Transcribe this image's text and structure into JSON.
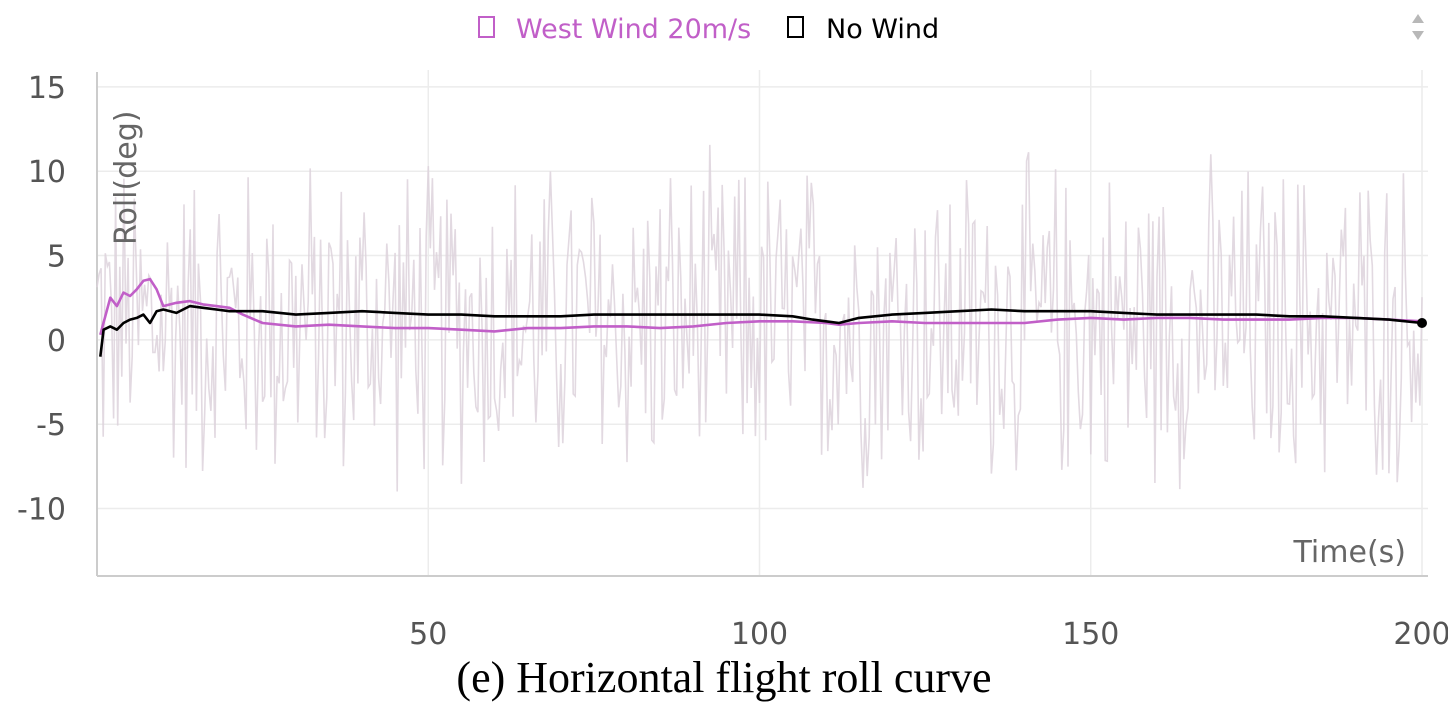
{
  "chart_data": {
    "type": "line",
    "caption": "(e) Horizontal flight roll curve",
    "xlabel": "Time(s)",
    "ylabel": "Roll(deg)",
    "xlim": [
      0,
      200
    ],
    "ylim": [
      -14,
      16
    ],
    "x_ticks": [
      50,
      100,
      150,
      200
    ],
    "x_tick_labels": [
      "50",
      "100",
      "150",
      "200"
    ],
    "y_ticks": [
      15,
      10,
      5,
      0,
      -5,
      -10
    ],
    "y_tick_labels": [
      "15",
      "10",
      "5",
      "0",
      "-5",
      "-10"
    ],
    "grid": true,
    "legend_position": "top-center",
    "colors": {
      "west_wind": "#c15fc8",
      "no_wind": "#000000",
      "raw_noise": "#ddd2dc",
      "grid": "#ececec",
      "axis": "#cccccc"
    },
    "series": [
      {
        "name": "West Wind 20m/s",
        "x": [
          0.5,
          2,
          3,
          4,
          5,
          6,
          7,
          8,
          9,
          10,
          12,
          14,
          16,
          18,
          20,
          22,
          25,
          30,
          35,
          40,
          45,
          50,
          55,
          60,
          65,
          70,
          75,
          80,
          85,
          90,
          95,
          100,
          105,
          110,
          112,
          115,
          120,
          125,
          130,
          135,
          140,
          145,
          150,
          155,
          160,
          165,
          170,
          175,
          180,
          185,
          190,
          195,
          200
        ],
        "y": [
          0.3,
          2.5,
          2.0,
          2.8,
          2.6,
          3.0,
          3.5,
          3.6,
          3.0,
          2.0,
          2.2,
          2.3,
          2.1,
          2.0,
          1.9,
          1.5,
          1.0,
          0.8,
          0.9,
          0.8,
          0.7,
          0.7,
          0.6,
          0.5,
          0.7,
          0.7,
          0.8,
          0.8,
          0.7,
          0.8,
          1.0,
          1.1,
          1.1,
          1.0,
          0.9,
          1.0,
          1.1,
          1.0,
          1.0,
          1.0,
          1.0,
          1.2,
          1.3,
          1.2,
          1.3,
          1.3,
          1.2,
          1.2,
          1.2,
          1.3,
          1.3,
          1.2,
          1.1
        ]
      },
      {
        "name": "No Wind",
        "x": [
          0.5,
          1,
          2,
          3,
          4,
          5,
          6,
          7,
          8,
          9,
          10,
          12,
          14,
          16,
          18,
          20,
          25,
          30,
          35,
          40,
          45,
          50,
          55,
          60,
          65,
          70,
          75,
          80,
          85,
          90,
          95,
          100,
          105,
          108,
          110,
          112,
          115,
          120,
          125,
          130,
          135,
          140,
          145,
          150,
          155,
          160,
          165,
          170,
          175,
          180,
          185,
          190,
          195,
          200
        ],
        "y": [
          -1.0,
          0.6,
          0.8,
          0.6,
          1.0,
          1.2,
          1.3,
          1.5,
          1.0,
          1.7,
          1.8,
          1.6,
          2.0,
          1.9,
          1.8,
          1.7,
          1.7,
          1.5,
          1.6,
          1.7,
          1.6,
          1.5,
          1.5,
          1.4,
          1.4,
          1.4,
          1.5,
          1.5,
          1.5,
          1.5,
          1.5,
          1.5,
          1.4,
          1.2,
          1.1,
          1.0,
          1.3,
          1.5,
          1.6,
          1.7,
          1.8,
          1.7,
          1.7,
          1.7,
          1.6,
          1.5,
          1.5,
          1.5,
          1.5,
          1.4,
          1.4,
          1.3,
          1.2,
          1.0
        ]
      }
    ],
    "raw_noise_amplitude": 10
  }
}
